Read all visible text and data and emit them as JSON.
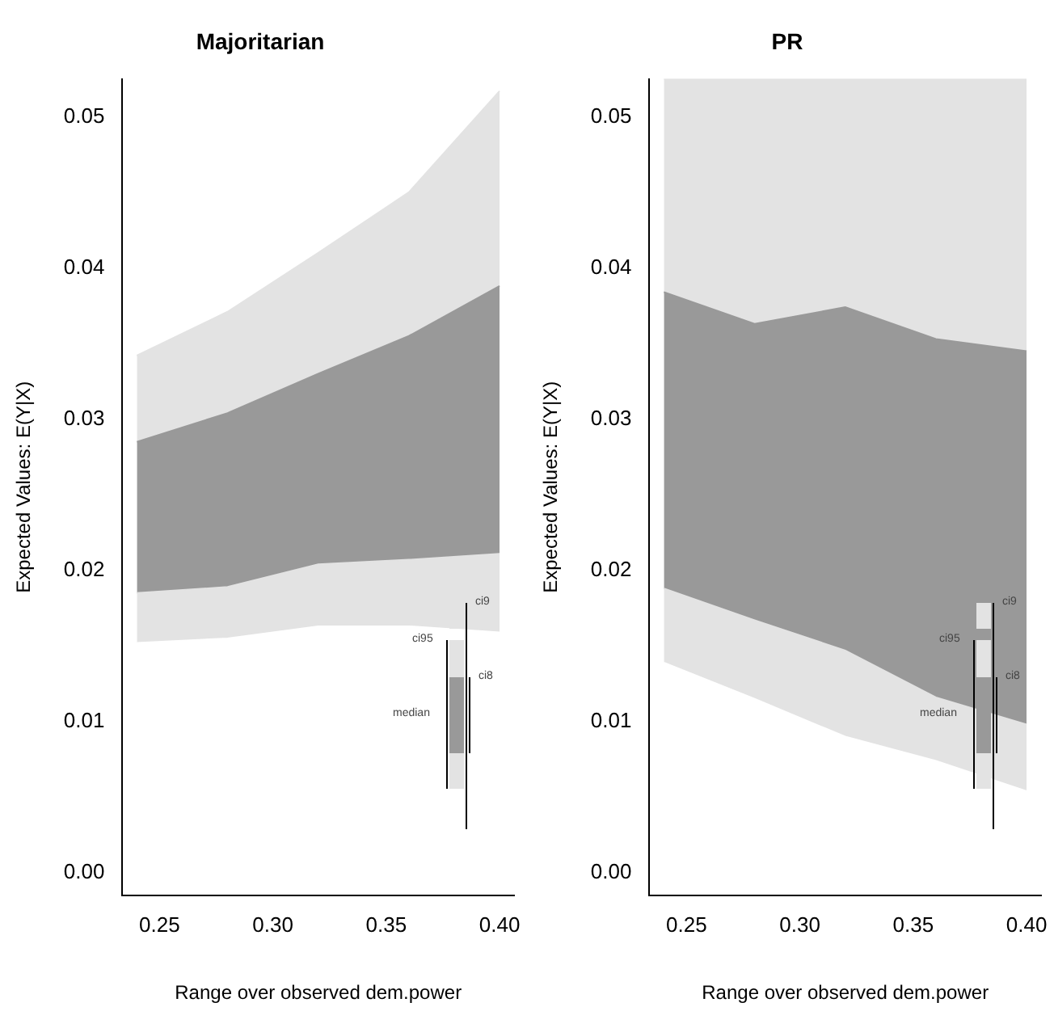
{
  "chart_data": [
    {
      "type": "area",
      "stacked": true,
      "title": "Majoritarian",
      "xlabel": "Range over observed dem.power",
      "ylabel": "Expected Values: E(Y|X)",
      "x": [
        0.24,
        0.28,
        0.32,
        0.36,
        0.4
      ],
      "series": [
        {
          "color": "#ffffff",
          "values": [
            0.0152,
            0.0155,
            0.0163,
            0.0163,
            0.0159
          ]
        },
        {
          "color": "#e3e3e3",
          "values": [
            0.0033,
            0.0034,
            0.0041,
            0.0044,
            0.0052
          ]
        },
        {
          "color": "#999999",
          "values": [
            0.01,
            0.0115,
            0.0126,
            0.0148,
            0.0177
          ]
        },
        {
          "color": "#e3e3e3",
          "values": [
            0.0057,
            0.0067,
            0.008,
            0.0095,
            0.0129
          ]
        }
      ],
      "xlim": [
        0.2336,
        0.4064
      ],
      "xticks": [
        {
          "value": 0.25,
          "label": "0.25"
        },
        {
          "value": 0.3,
          "label": "0.30"
        },
        {
          "value": 0.35,
          "label": "0.35"
        },
        {
          "value": 0.4,
          "label": "0.40"
        }
      ],
      "ylim": [
        -0.0015,
        0.0525
      ],
      "yticks": [
        {
          "value": 0,
          "label": "0.00"
        },
        {
          "value": 0.01,
          "label": "0.01"
        },
        {
          "value": 0.02,
          "label": "0.02"
        },
        {
          "value": 0.03,
          "label": "0.03"
        },
        {
          "value": 0.04,
          "label": "0.04"
        },
        {
          "value": 0.05,
          "label": "0.05"
        }
      ],
      "annotations": [
        "ci9",
        "ci95",
        "ci8",
        "median"
      ],
      "grid": false,
      "legend": false
    },
    {
      "type": "area",
      "stacked": true,
      "title": "PR",
      "xlabel": "Range over observed dem.power",
      "ylabel": "Expected Values: E(Y|X)",
      "x": [
        0.24,
        0.28,
        0.32,
        0.36,
        0.4
      ],
      "series": [
        {
          "color": "#ffffff",
          "values": [
            0.0139,
            0.0115,
            0.009,
            0.0074,
            0.0054
          ]
        },
        {
          "color": "#e3e3e3",
          "values": [
            0.0049,
            0.0052,
            0.0057,
            0.0042,
            0.0044
          ]
        },
        {
          "color": "#999999",
          "values": [
            0.0196,
            0.0196,
            0.0227,
            0.0237,
            0.0247
          ]
        },
        {
          "color": "#e3e3e3",
          "values": [
            0.0141,
            0.0162,
            0.0151,
            0.0172,
            0.018
          ]
        }
      ],
      "xlim": [
        0.2336,
        0.4064
      ],
      "xticks": [
        {
          "value": 0.25,
          "label": "0.25"
        },
        {
          "value": 0.3,
          "label": "0.30"
        },
        {
          "value": 0.35,
          "label": "0.35"
        },
        {
          "value": 0.4,
          "label": "0.40"
        }
      ],
      "ylim": [
        -0.0015,
        0.0525
      ],
      "yticks": [
        {
          "value": 0,
          "label": "0.00"
        },
        {
          "value": 0.01,
          "label": "0.01"
        },
        {
          "value": 0.02,
          "label": "0.02"
        },
        {
          "value": 0.03,
          "label": "0.03"
        },
        {
          "value": 0.04,
          "label": "0.04"
        },
        {
          "value": 0.05,
          "label": "0.05"
        }
      ],
      "annotations": [
        "ci9",
        "ci95",
        "ci8",
        "median"
      ],
      "grid": false,
      "legend": false
    }
  ]
}
